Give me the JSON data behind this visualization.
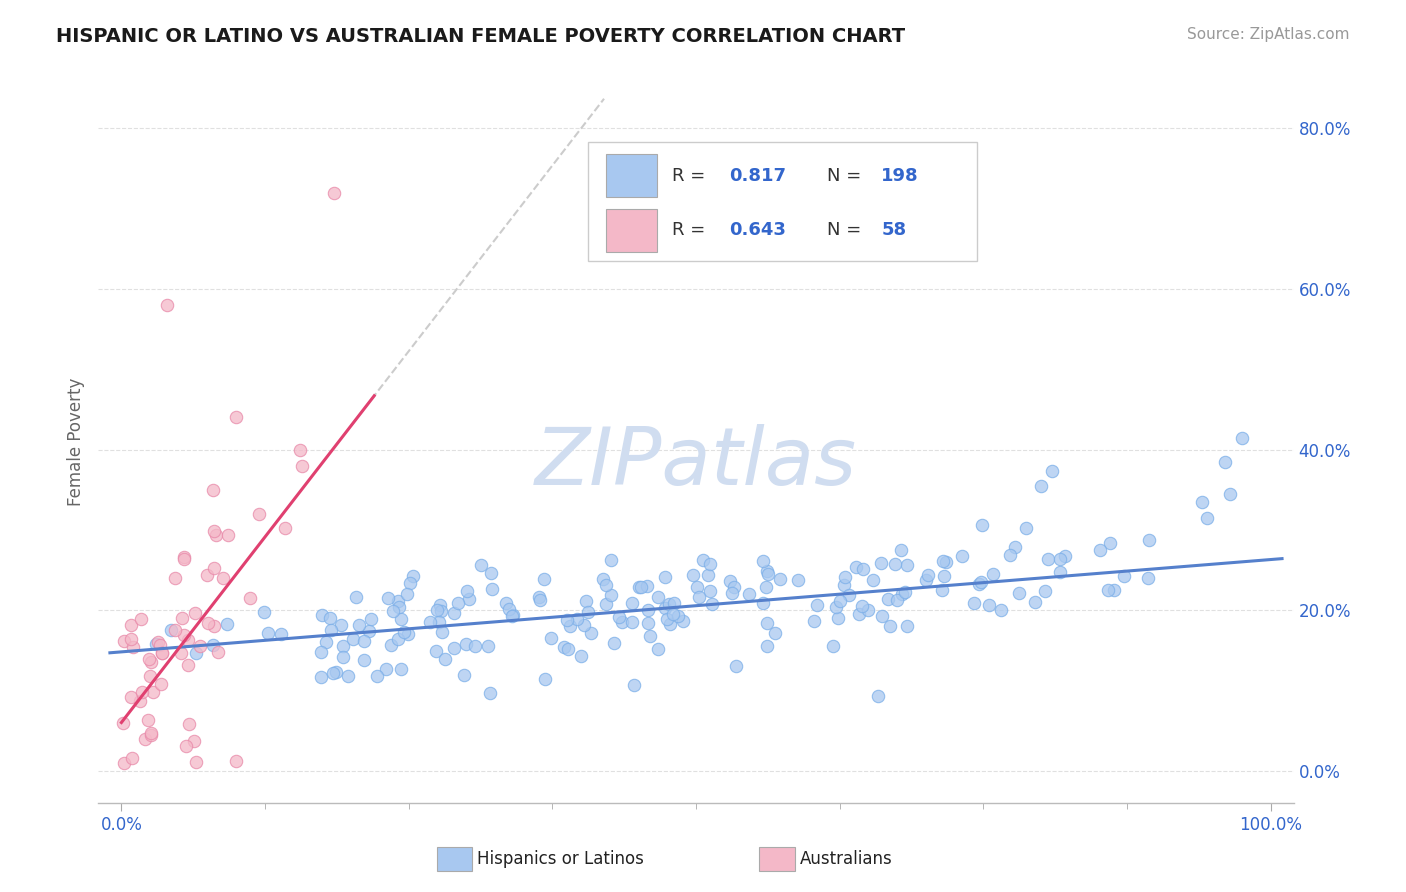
{
  "title": "HISPANIC OR LATINO VS AUSTRALIAN FEMALE POVERTY CORRELATION CHART",
  "source": "Source: ZipAtlas.com",
  "ylabel": "Female Poverty",
  "xlim": [
    -0.02,
    1.02
  ],
  "ylim": [
    -0.04,
    0.86
  ],
  "ytick_values": [
    0.0,
    0.2,
    0.4,
    0.6,
    0.8
  ],
  "blue_R": 0.817,
  "blue_N": 198,
  "pink_R": 0.643,
  "pink_N": 58,
  "blue_color": "#a8c8f0",
  "pink_color": "#f4b8c8",
  "blue_edge_color": "#7aaee8",
  "pink_edge_color": "#e888a8",
  "blue_line_color": "#5580cc",
  "pink_line_color": "#e04070",
  "dashed_line_color": "#cccccc",
  "legend_text_color": "#3366cc",
  "watermark_color": "#d0ddf0",
  "background_color": "#ffffff",
  "grid_color": "#e0e0e0",
  "blue_slope": 0.115,
  "blue_intercept": 0.148,
  "pink_slope": 1.85,
  "pink_intercept": 0.06
}
